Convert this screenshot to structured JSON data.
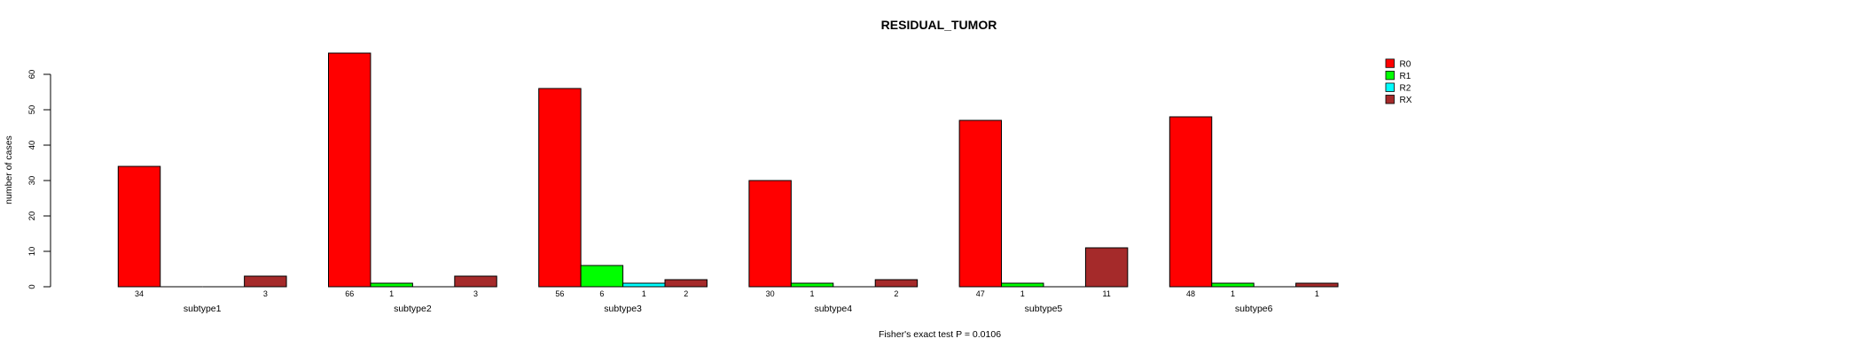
{
  "chart_data": {
    "type": "bar",
    "title": "RESIDUAL_TUMOR",
    "subtitle": "Fisher's exact test P = 0.0106",
    "ylabel": "number of cases",
    "xlabel": "",
    "categories": [
      "subtype1",
      "subtype2",
      "subtype3",
      "subtype4",
      "subtype5",
      "subtype6"
    ],
    "series": [
      {
        "name": "R0",
        "color": "#FF0000",
        "values": [
          34,
          66,
          56,
          30,
          47,
          48
        ]
      },
      {
        "name": "R1",
        "color": "#00FF00",
        "values": [
          0,
          1,
          6,
          1,
          1,
          1
        ]
      },
      {
        "name": "R2",
        "color": "#00FFFF",
        "values": [
          0,
          0,
          1,
          0,
          0,
          0
        ]
      },
      {
        "name": "RX",
        "color": "#A52A2A",
        "values": [
          3,
          3,
          2,
          2,
          11,
          1
        ]
      }
    ],
    "yticks": [
      0,
      10,
      20,
      30,
      40,
      50,
      60
    ],
    "ylim": [
      0,
      66
    ],
    "grid": false,
    "legend_position": "top-right",
    "show_value_labels_under_nonzero_bars": true,
    "zero_bars_drawn_as_baseline_segments": true,
    "bar_border_color": "#000000",
    "text_color": "#000000",
    "background_color": "#FFFFFF"
  }
}
